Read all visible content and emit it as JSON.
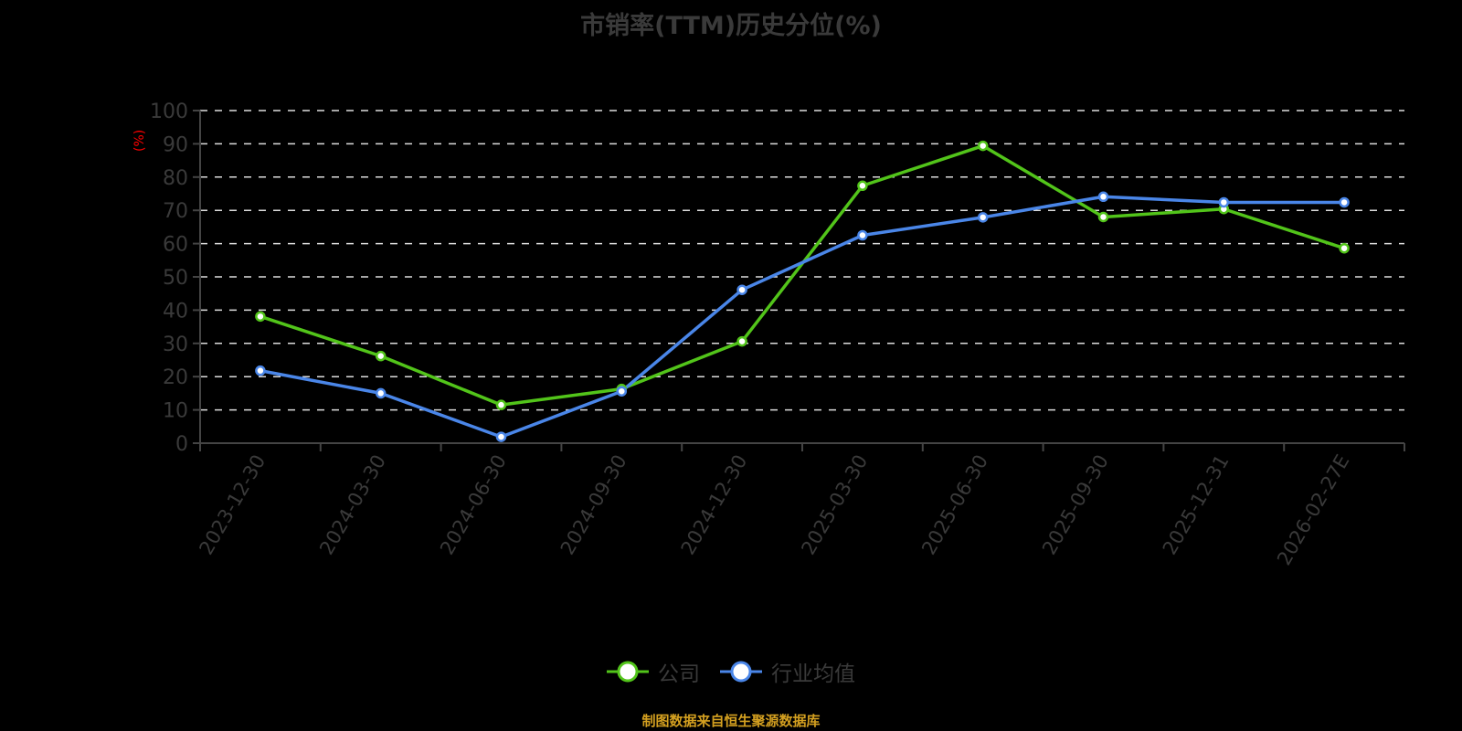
{
  "title": "市销率(TTM)历史分位(%)",
  "y_axis_unit": "(%)",
  "legend": [
    {
      "label": "公司",
      "color": "#52c41a"
    },
    {
      "label": "行业均值",
      "color": "#4a86e8"
    }
  ],
  "footer": "制图数据来自恒生聚源数据库",
  "colors": {
    "background": "#000000",
    "company": "#52c41a",
    "industry": "#4a86e8",
    "axis": "#444444",
    "grid": "#dddddd",
    "tick_text": "#3a3a3a",
    "unit": "#ff0000",
    "footer": "#d4a020"
  },
  "chart_data": {
    "type": "line",
    "title": "市销率(TTM)历史分位(%)",
    "xlabel": "",
    "ylabel": "(%)",
    "ylim": [
      0,
      100
    ],
    "yticks": [
      0,
      10,
      20,
      30,
      40,
      50,
      60,
      70,
      80,
      90,
      100
    ],
    "grid": true,
    "legend_position": "bottom",
    "categories": [
      "2023-12-30",
      "2024-03-30",
      "2024-06-30",
      "2024-09-30",
      "2024-12-30",
      "2025-03-30",
      "2025-06-30",
      "2025-09-30",
      "2025-12-31",
      "2026-02-27E"
    ],
    "series": [
      {
        "name": "公司",
        "values": [
          38.1,
          26.2,
          11.5,
          16.3,
          30.6,
          77.4,
          89.4,
          68.0,
          70.4,
          58.6
        ]
      },
      {
        "name": "行业均值",
        "values": [
          21.8,
          15.0,
          1.9,
          15.6,
          46.1,
          62.5,
          67.9,
          74.1,
          72.4,
          72.4
        ]
      }
    ]
  }
}
